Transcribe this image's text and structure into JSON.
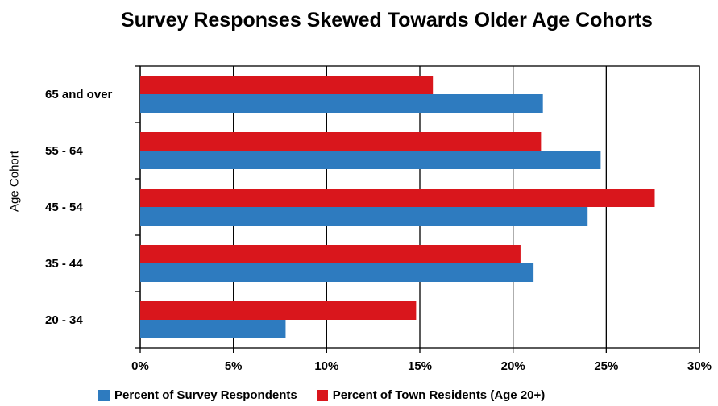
{
  "chart_data": {
    "type": "bar",
    "orientation": "horizontal",
    "title": "Survey Responses Skewed Towards Older Age Cohorts",
    "xlabel": "",
    "ylabel": "Age Cohort",
    "categories": [
      "65 and over",
      "55 - 64",
      "45 - 54",
      "35 - 44",
      "20 - 34"
    ],
    "series": [
      {
        "name": "Percent of Survey Respondents",
        "color": "#2e7bbf",
        "values": [
          21.6,
          24.7,
          24.0,
          21.1,
          7.8
        ]
      },
      {
        "name": "Percent of Town Residents (Age 20+)",
        "color": "#d9161c",
        "values": [
          15.7,
          21.5,
          27.6,
          20.4,
          14.8
        ]
      }
    ],
    "xlim": [
      0,
      30
    ],
    "xticks": [
      0,
      5,
      10,
      15,
      20,
      25,
      30
    ],
    "xtick_labels": [
      "0%",
      "5%",
      "10%",
      "15%",
      "20%",
      "25%",
      "30%"
    ],
    "grid": "vertical",
    "legend": "bottom"
  }
}
